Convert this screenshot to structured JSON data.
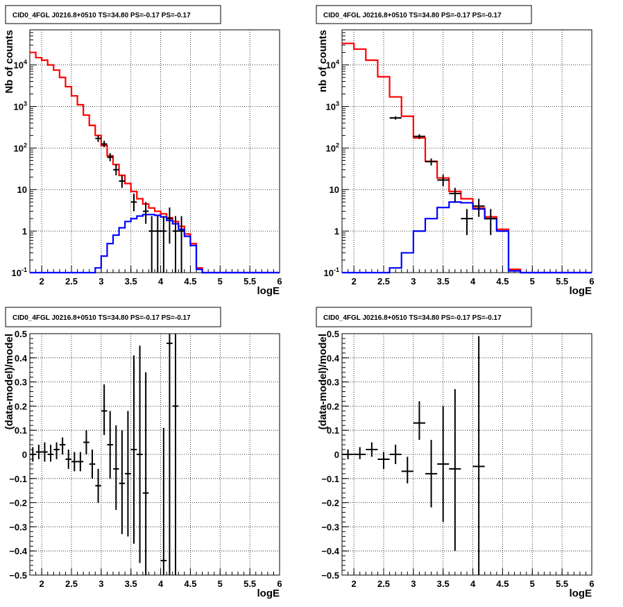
{
  "panels": [
    {
      "title": "CID0_4FGL J0216.8+0510 TS=34.80 PS=-0.17 PS=-0.17",
      "chart_data": {
        "type": "line",
        "scale": "log",
        "xlabel": "logE",
        "ylabel": "Nb of counts",
        "xlim": [
          1.8,
          6.0
        ],
        "ylim": [
          0.1,
          70000
        ],
        "grid": true,
        "x_ticks": [
          "2",
          "2.5",
          "3",
          "3.5",
          "4",
          "4.5",
          "5",
          "5.5",
          "6"
        ],
        "y_ticks": [
          "10-1",
          "1",
          "10",
          "102",
          "103",
          "104"
        ],
        "bin_edges": [
          1.8,
          1.9,
          2.0,
          2.1,
          2.2,
          2.3,
          2.4,
          2.5,
          2.6,
          2.7,
          2.8,
          2.9,
          3.0,
          3.1,
          3.2,
          3.3,
          3.4,
          3.5,
          3.6,
          3.7,
          3.8,
          3.9,
          4.0,
          4.1,
          4.2,
          4.3,
          4.4,
          4.5,
          4.6,
          4.7,
          4.8,
          4.9,
          5.0,
          5.1,
          5.2,
          5.3,
          5.4,
          5.5,
          5.6,
          5.7,
          5.8,
          5.9,
          6.0
        ],
        "series": [
          {
            "color": "#ff0000",
            "values": [
              20000,
              15000,
              13000,
              10000,
              7500,
              5000,
              3000,
              1800,
              1100,
              620,
              350,
              200,
              115,
              65,
              40,
              22,
              14,
              9,
              6,
              4.5,
              3.6,
              3,
              2.6,
              2.1,
              1.7,
              1.3,
              0.85,
              0.5,
              0.13,
              0.1,
              0.1,
              0.1,
              0.1,
              0.1,
              0.1,
              0.1,
              0.1,
              0.1,
              0.1,
              0.1,
              0.1,
              0.1
            ]
          },
          {
            "color": "#0000ff",
            "values": [
              0.1,
              0.1,
              0.1,
              0.1,
              0.1,
              0.1,
              0.1,
              0.1,
              0.1,
              0.1,
              0.1,
              0.13,
              0.25,
              0.5,
              0.8,
              1.2,
              1.7,
              2.0,
              2.3,
              2.5,
              2.5,
              2.4,
              2.2,
              1.8,
              1.5,
              1.1,
              0.75,
              0.45,
              0.12,
              0.1,
              0.1,
              0.1,
              0.1,
              0.1,
              0.1,
              0.1,
              0.1,
              0.1,
              0.1,
              0.1,
              0.1,
              0.1
            ]
          }
        ],
        "points": [
          {
            "x": 2.95,
            "y": 170,
            "lo": 140,
            "hi": 200
          },
          {
            "x": 3.05,
            "y": 125,
            "lo": 105,
            "hi": 150
          },
          {
            "x": 3.15,
            "y": 60,
            "lo": 48,
            "hi": 75
          },
          {
            "x": 3.25,
            "y": 30,
            "lo": 22,
            "hi": 40
          },
          {
            "x": 3.35,
            "y": 16,
            "lo": 11,
            "hi": 22
          },
          {
            "x": 3.55,
            "y": 5,
            "lo": 3,
            "hi": 8
          },
          {
            "x": 3.75,
            "y": 3,
            "lo": 1.5,
            "hi": 5
          },
          {
            "x": 3.85,
            "y": 1,
            "lo": 0.1,
            "hi": 2.3
          },
          {
            "x": 3.95,
            "y": 1,
            "lo": 0.1,
            "hi": 2.3
          },
          {
            "x": 4.05,
            "y": 1,
            "lo": 0.1,
            "hi": 2.3
          },
          {
            "x": 4.15,
            "y": 2,
            "lo": 0.5,
            "hi": 3.7
          },
          {
            "x": 4.25,
            "y": 1,
            "lo": 0.1,
            "hi": 2.3
          },
          {
            "x": 4.35,
            "y": 1,
            "lo": 0.1,
            "hi": 2.3
          }
        ]
      }
    },
    {
      "title": "CID0_4FGL J0216.8+0510 TS=34.80 PS=-0.17 PS=-0.17",
      "chart_data": {
        "type": "line",
        "scale": "log",
        "xlabel": "logE",
        "ylabel": "nb of counts",
        "xlim": [
          1.8,
          6.0
        ],
        "ylim": [
          0.1,
          70000
        ],
        "grid": true,
        "x_ticks": [
          "2",
          "2.5",
          "3",
          "3.5",
          "4",
          "4.5",
          "5",
          "5.5",
          "6"
        ],
        "y_ticks": [
          "10-1",
          "1",
          "10",
          "102",
          "103",
          "104"
        ],
        "bin_edges": [
          1.8,
          2.0,
          2.2,
          2.4,
          2.6,
          2.8,
          3.0,
          3.2,
          3.4,
          3.6,
          3.8,
          4.0,
          4.2,
          4.4,
          4.6,
          4.8,
          5.0,
          5.2,
          5.4,
          5.6,
          5.8,
          6.0
        ],
        "series": [
          {
            "color": "#ff0000",
            "values": [
              33000,
              24000,
              13000,
              5200,
              1700,
              580,
              175,
              48,
              19,
              9,
              6,
              3.6,
              2.2,
              1.1,
              0.12,
              0.1,
              0.1,
              0.1,
              0.1,
              0.1,
              0.1
            ]
          },
          {
            "color": "#0000ff",
            "values": [
              0.1,
              0.1,
              0.1,
              0.1,
              0.13,
              0.3,
              1.0,
              2.0,
              3.7,
              5.0,
              4.8,
              3.4,
              2.0,
              1.0,
              0.11,
              0.1,
              0.1,
              0.1,
              0.1,
              0.1,
              0.1
            ]
          }
        ],
        "points": [
          {
            "x": 2.7,
            "y": 530,
            "lo": 480,
            "hi": 580
          },
          {
            "x": 3.1,
            "y": 190,
            "lo": 165,
            "hi": 215
          },
          {
            "x": 3.3,
            "y": 47,
            "lo": 38,
            "hi": 56
          },
          {
            "x": 3.5,
            "y": 17,
            "lo": 12,
            "hi": 23
          },
          {
            "x": 3.7,
            "y": 8,
            "lo": 5,
            "hi": 11
          },
          {
            "x": 3.9,
            "y": 2,
            "lo": 0.8,
            "hi": 3.4
          },
          {
            "x": 4.1,
            "y": 4,
            "lo": 2.2,
            "hi": 6
          },
          {
            "x": 4.3,
            "y": 2,
            "lo": 0.8,
            "hi": 3.4
          }
        ]
      }
    },
    {
      "title": "CID0_4FGL J0216.8+0510 TS=34.80 PS=-0.17 PS=-0.17",
      "chart_data": {
        "type": "scatter",
        "scale": "linear",
        "xlabel": "logE",
        "ylabel": "(data-model)/model",
        "xlim": [
          1.8,
          6.0
        ],
        "ylim": [
          -0.5,
          0.5
        ],
        "grid": true,
        "x_ticks": [
          "2",
          "2.5",
          "3",
          "3.5",
          "4",
          "4.5",
          "5",
          "5.5",
          "6"
        ],
        "y_ticks": [
          "−0.5",
          "−0.4",
          "−0.3",
          "−0.2",
          "−0.1",
          "0",
          "0.1",
          "0.2",
          "0.3",
          "0.4",
          "0.5"
        ],
        "points": [
          {
            "x": 1.85,
            "y": 0.0,
            "lo": -0.03,
            "hi": 0.03
          },
          {
            "x": 1.95,
            "y": 0.01,
            "lo": -0.02,
            "hi": 0.04
          },
          {
            "x": 2.05,
            "y": 0.01,
            "lo": -0.03,
            "hi": 0.05
          },
          {
            "x": 2.15,
            "y": 0.0,
            "lo": -0.03,
            "hi": 0.04
          },
          {
            "x": 2.25,
            "y": 0.02,
            "lo": -0.02,
            "hi": 0.05
          },
          {
            "x": 2.35,
            "y": 0.04,
            "lo": 0.0,
            "hi": 0.07
          },
          {
            "x": 2.45,
            "y": -0.02,
            "lo": -0.06,
            "hi": 0.02
          },
          {
            "x": 2.55,
            "y": -0.03,
            "lo": -0.07,
            "hi": 0.01
          },
          {
            "x": 2.65,
            "y": -0.03,
            "lo": -0.07,
            "hi": 0.01
          },
          {
            "x": 2.75,
            "y": 0.05,
            "lo": 0.0,
            "hi": 0.1
          },
          {
            "x": 2.85,
            "y": -0.04,
            "lo": -0.1,
            "hi": 0.02
          },
          {
            "x": 2.95,
            "y": -0.13,
            "lo": -0.2,
            "hi": -0.06
          },
          {
            "x": 3.05,
            "y": 0.18,
            "lo": 0.08,
            "hi": 0.29
          },
          {
            "x": 3.15,
            "y": 0.04,
            "lo": -0.1,
            "hi": 0.18
          },
          {
            "x": 3.25,
            "y": -0.06,
            "lo": -0.23,
            "hi": 0.12
          },
          {
            "x": 3.35,
            "y": -0.12,
            "lo": -0.33,
            "hi": 0.1
          },
          {
            "x": 3.45,
            "y": -0.08,
            "lo": -0.34,
            "hi": 0.18
          },
          {
            "x": 3.55,
            "y": 0.02,
            "lo": -0.37,
            "hi": 0.41
          },
          {
            "x": 3.65,
            "y": 0.0,
            "lo": -0.45,
            "hi": 0.45
          },
          {
            "x": 3.75,
            "y": -0.16,
            "lo": -0.5,
            "hi": 0.34
          },
          {
            "x": 4.05,
            "y": -0.44,
            "lo": -0.5,
            "hi": 0.11
          },
          {
            "x": 4.15,
            "y": 0.46,
            "lo": -0.5,
            "hi": 0.5
          },
          {
            "x": 4.25,
            "y": 0.2,
            "lo": -0.5,
            "hi": 0.5
          }
        ]
      }
    },
    {
      "title": "CID0_4FGL J0216.8+0510 TS=34.80 PS=-0.17 PS=-0.17",
      "chart_data": {
        "type": "scatter",
        "scale": "linear",
        "xlabel": "logE",
        "ylabel": "(data-model)/model",
        "xlim": [
          1.8,
          6.0
        ],
        "ylim": [
          -0.5,
          0.5
        ],
        "grid": true,
        "x_ticks": [
          "2",
          "2.5",
          "3",
          "3.5",
          "4",
          "4.5",
          "5",
          "5.5",
          "6"
        ],
        "y_ticks": [
          "−0.5",
          "−0.4",
          "−0.3",
          "−0.2",
          "−0.1",
          "0",
          "0.1",
          "0.2",
          "0.3",
          "0.4",
          "0.5"
        ],
        "points": [
          {
            "x": 1.9,
            "y": 0.0,
            "lo": -0.02,
            "hi": 0.02
          },
          {
            "x": 2.1,
            "y": 0.0,
            "lo": -0.02,
            "hi": 0.03
          },
          {
            "x": 2.3,
            "y": 0.02,
            "lo": -0.01,
            "hi": 0.05
          },
          {
            "x": 2.5,
            "y": -0.02,
            "lo": -0.06,
            "hi": 0.01
          },
          {
            "x": 2.7,
            "y": 0.0,
            "lo": -0.04,
            "hi": 0.04
          },
          {
            "x": 2.9,
            "y": -0.07,
            "lo": -0.12,
            "hi": -0.01
          },
          {
            "x": 3.1,
            "y": 0.13,
            "lo": 0.06,
            "hi": 0.22
          },
          {
            "x": 3.3,
            "y": -0.08,
            "lo": -0.22,
            "hi": 0.06
          },
          {
            "x": 3.5,
            "y": -0.04,
            "lo": -0.28,
            "hi": 0.2
          },
          {
            "x": 3.7,
            "y": -0.06,
            "lo": -0.4,
            "hi": 0.27
          },
          {
            "x": 4.1,
            "y": -0.05,
            "lo": -0.5,
            "hi": 0.49
          }
        ]
      }
    }
  ]
}
